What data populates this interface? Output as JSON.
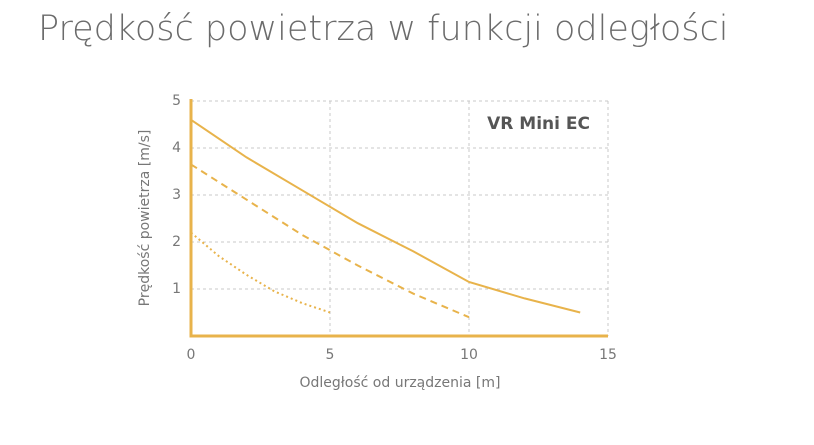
{
  "chart_data": {
    "type": "line",
    "title": "Prędkość powietrza w funkcji odległości",
    "annotation": "VR Mini EC",
    "xlabel": "Odległość od urządzenia [m]",
    "ylabel": "Prędkość powietrza  [m/s]",
    "xlim": [
      0,
      15
    ],
    "xticks": [
      0,
      5,
      10,
      15
    ],
    "ylim": [
      0,
      5
    ],
    "yticks": [
      1,
      2,
      3,
      4,
      5
    ],
    "grid": true,
    "series": [
      {
        "color": "#e8b34b",
        "style": "solid",
        "x": [
          0,
          2,
          4,
          6,
          8,
          10,
          12,
          14
        ],
        "values": [
          4.6,
          3.8,
          3.1,
          2.4,
          1.8,
          1.15,
          0.8,
          0.5
        ]
      },
      {
        "color": "#e8b34b",
        "style": "dashed",
        "x": [
          0,
          2,
          4,
          6,
          8,
          10
        ],
        "values": [
          3.65,
          2.9,
          2.15,
          1.5,
          0.9,
          0.4
        ]
      },
      {
        "color": "#e8b34b",
        "style": "dotted",
        "x": [
          0,
          1,
          2,
          3,
          4,
          5
        ],
        "values": [
          2.2,
          1.7,
          1.3,
          0.95,
          0.7,
          0.5
        ]
      }
    ]
  }
}
